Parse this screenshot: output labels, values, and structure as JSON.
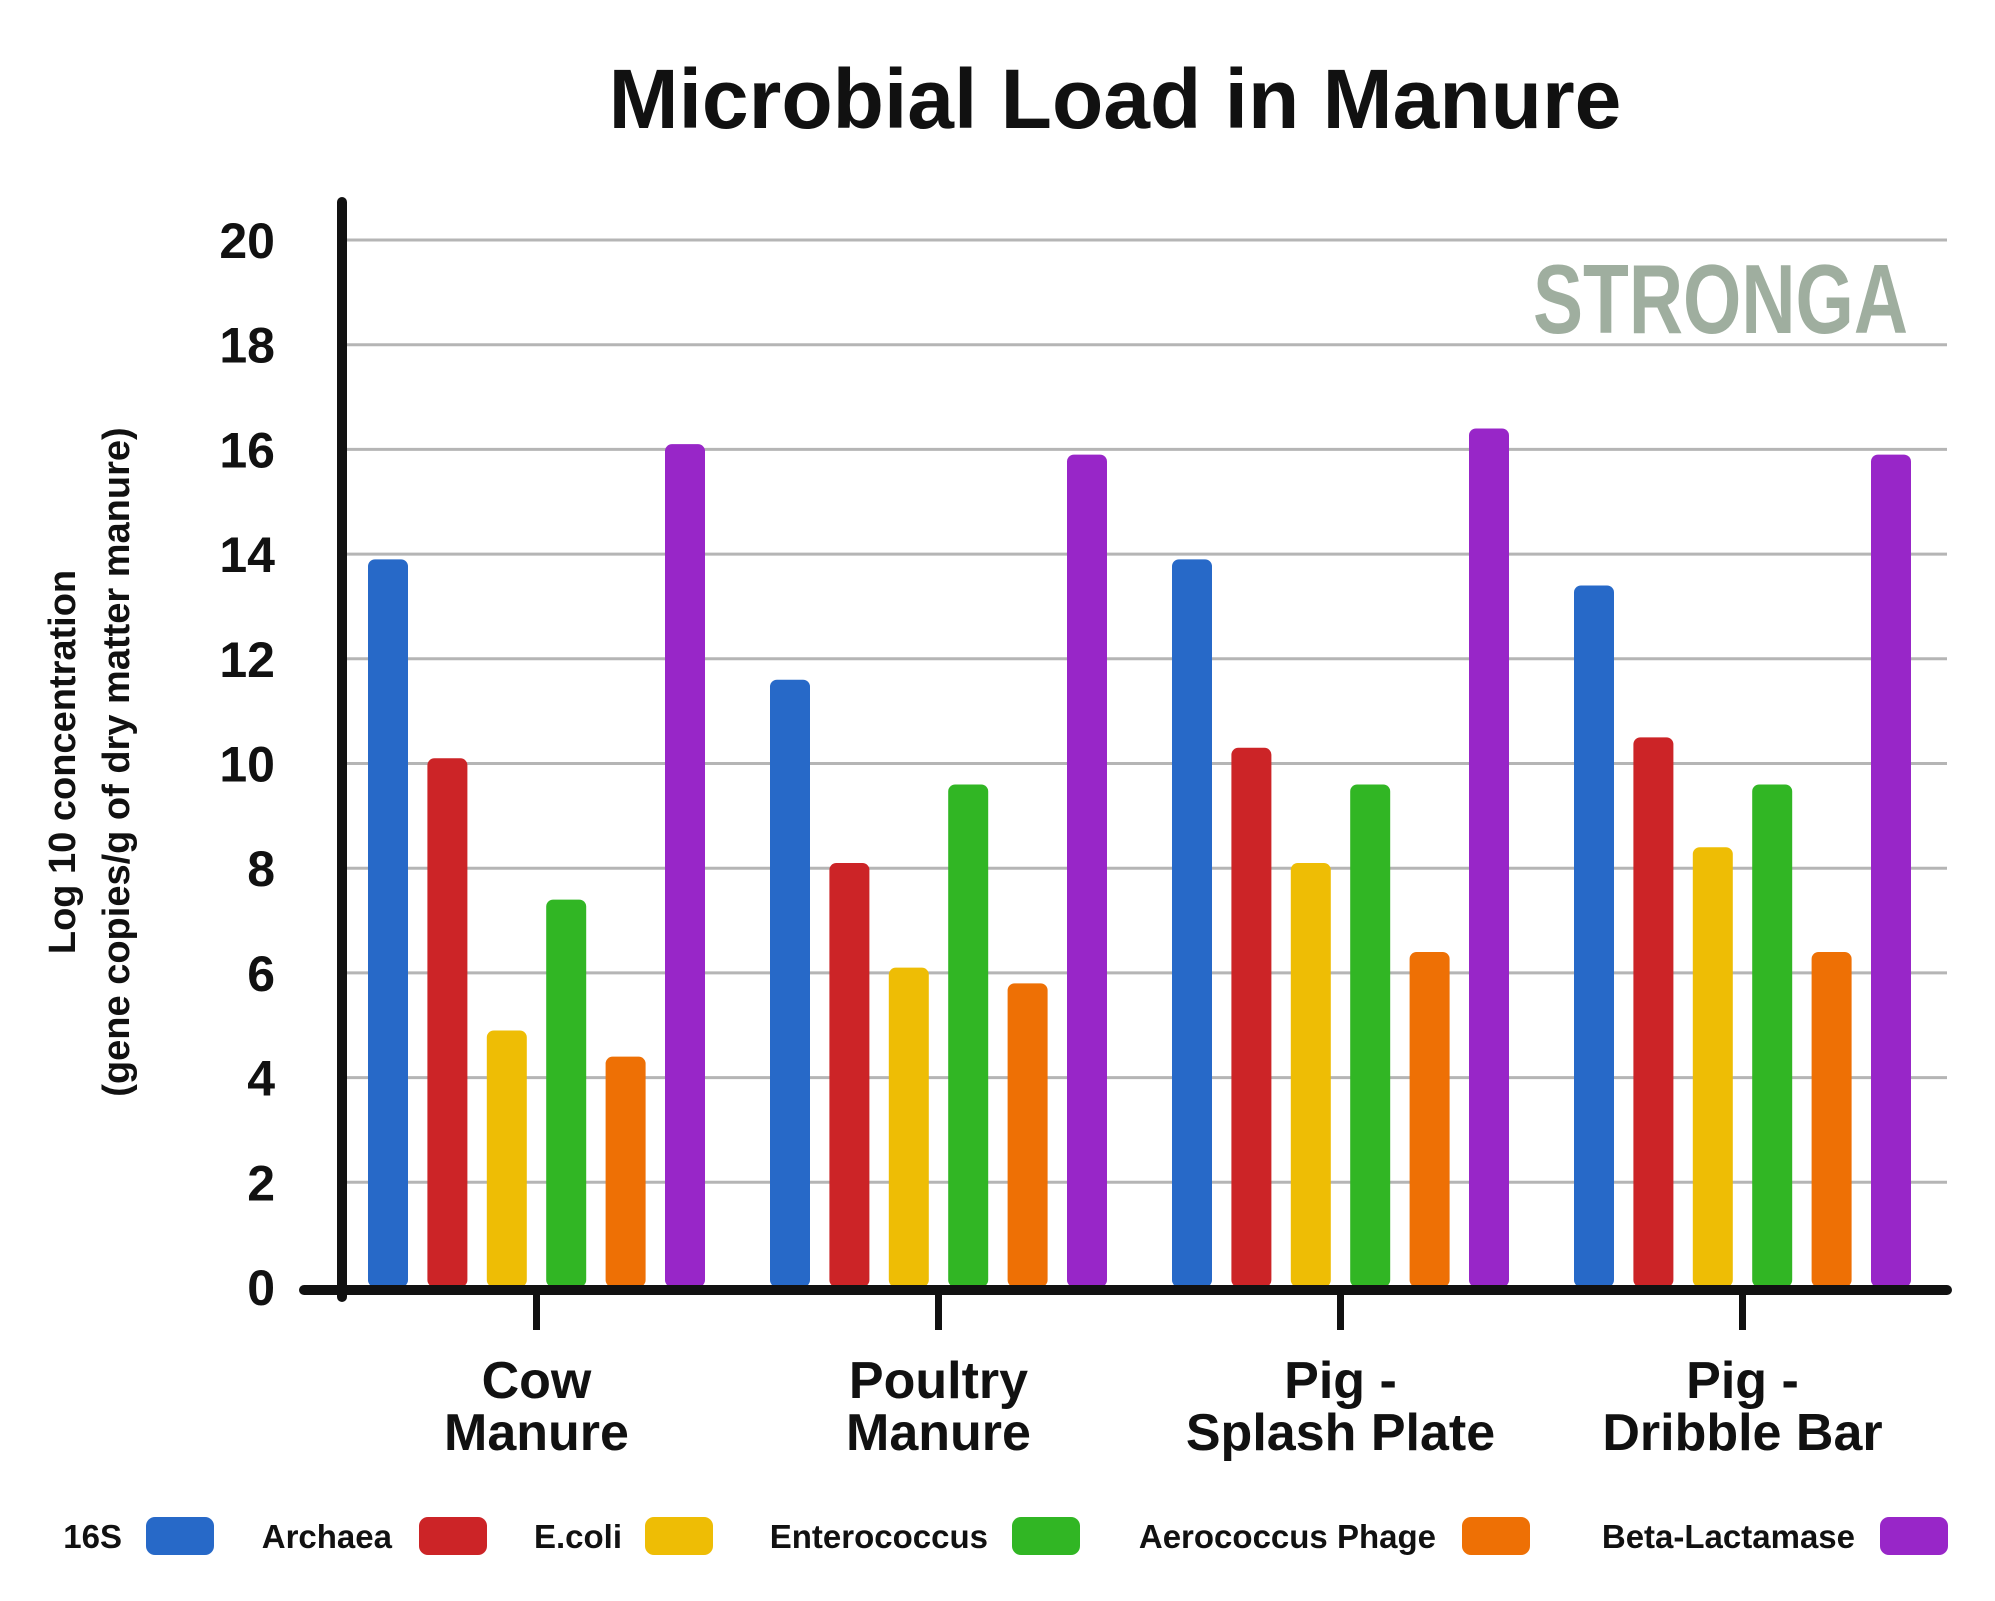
{
  "chart_data": {
    "type": "bar",
    "title": "Microbial Load in Manure",
    "ylabel": [
      "Log 10 concentration",
      "(gene copies/g of dry matter manure)"
    ],
    "xlabel": "",
    "ylim": [
      0,
      20
    ],
    "yticks": [
      0,
      2,
      4,
      6,
      8,
      10,
      12,
      14,
      16,
      18,
      20
    ],
    "grid": true,
    "legend_position": "bottom",
    "categories": [
      [
        "Cow",
        "Manure"
      ],
      [
        "Poultry",
        "Manure"
      ],
      [
        "Pig -",
        "Splash Plate"
      ],
      [
        "Pig -",
        "Dribble Bar"
      ]
    ],
    "series": [
      {
        "name": "16S",
        "color": "#2769c8",
        "values": [
          13.9,
          11.6,
          13.9,
          13.4
        ]
      },
      {
        "name": "Archaea",
        "color": "#cc2427",
        "values": [
          10.1,
          8.1,
          10.3,
          10.5
        ]
      },
      {
        "name": "E.coli",
        "color": "#eebd05",
        "values": [
          4.9,
          6.1,
          8.1,
          8.4
        ]
      },
      {
        "name": "Enterococcus",
        "color": "#31b624",
        "values": [
          7.4,
          9.6,
          9.6,
          9.6
        ]
      },
      {
        "name": "Aerococcus Phage",
        "color": "#ee7005",
        "values": [
          4.4,
          5.8,
          6.4,
          6.4
        ]
      },
      {
        "name": "Beta-Lactamase",
        "color": "#9826c8",
        "values": [
          16.1,
          15.9,
          16.4,
          15.9
        ]
      }
    ],
    "watermark": "STRONGA"
  }
}
